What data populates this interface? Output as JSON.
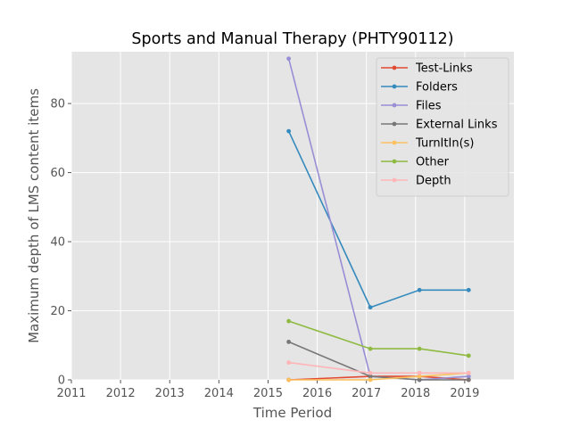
{
  "chart_data": {
    "type": "line",
    "title": "Sports and Manual Therapy (PHTY90112)",
    "xlabel": "Time Period",
    "ylabel": "Maximum depth of LMS content items",
    "xlim": [
      2011,
      2020
    ],
    "ylim": [
      0,
      95
    ],
    "xticks": [
      "2011",
      "2012",
      "2013",
      "2014",
      "2015",
      "2016",
      "2017",
      "2018",
      "2019"
    ],
    "yticks": [
      "0",
      "20",
      "40",
      "60",
      "80"
    ],
    "grid": true,
    "legend_position": "top-right",
    "x": [
      2015.42,
      2017.08,
      2018.08,
      2019.08
    ],
    "series": [
      {
        "name": "Test-Links",
        "color": "#E24A33",
        "values": [
          0,
          1,
          1,
          0
        ]
      },
      {
        "name": "Folders",
        "color": "#348ABD",
        "values": [
          72,
          21,
          26,
          26
        ]
      },
      {
        "name": "Files",
        "color": "#988ED5",
        "values": [
          93,
          1,
          0,
          1
        ]
      },
      {
        "name": "External Links",
        "color": "#777777",
        "values": [
          11,
          1,
          0,
          0
        ]
      },
      {
        "name": "TurnItIn(s)",
        "color": "#FBC15E",
        "values": [
          0,
          0,
          1,
          2
        ]
      },
      {
        "name": "Other",
        "color": "#8EBA42",
        "values": [
          17,
          9,
          9,
          7
        ]
      },
      {
        "name": "Depth",
        "color": "#FFB5B8",
        "values": [
          5,
          2,
          2,
          2
        ]
      }
    ]
  }
}
